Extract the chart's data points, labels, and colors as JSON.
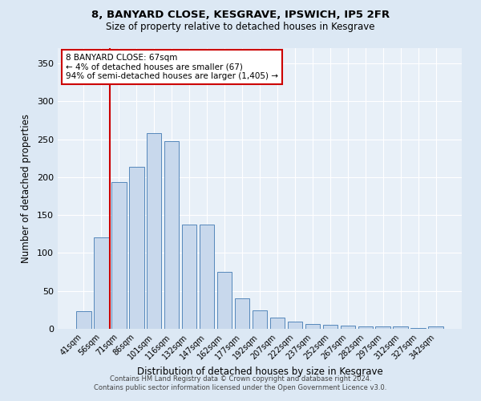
{
  "title1": "8, BANYARD CLOSE, KESGRAVE, IPSWICH, IP5 2FR",
  "title2": "Size of property relative to detached houses in Kesgrave",
  "xlabel": "Distribution of detached houses by size in Kesgrave",
  "ylabel": "Number of detached properties",
  "categories": [
    "41sqm",
    "56sqm",
    "71sqm",
    "86sqm",
    "101sqm",
    "116sqm",
    "132sqm",
    "147sqm",
    "162sqm",
    "177sqm",
    "192sqm",
    "207sqm",
    "222sqm",
    "237sqm",
    "252sqm",
    "267sqm",
    "282sqm",
    "297sqm",
    "312sqm",
    "327sqm",
    "342sqm"
  ],
  "values": [
    23,
    120,
    193,
    214,
    258,
    247,
    137,
    137,
    75,
    40,
    24,
    15,
    9,
    6,
    5,
    4,
    3,
    3,
    3,
    1,
    3
  ],
  "bar_color": "#c8d8ec",
  "bar_edge_color": "#5588bb",
  "vline_color": "#cc0000",
  "vline_x_index": 1.5,
  "annotation_text": "8 BANYARD CLOSE: 67sqm\n← 4% of detached houses are smaller (67)\n94% of semi-detached houses are larger (1,405) →",
  "annotation_box_facecolor": "#ffffff",
  "annotation_box_edgecolor": "#cc0000",
  "ylim": [
    0,
    370
  ],
  "yticks": [
    0,
    50,
    100,
    150,
    200,
    250,
    300,
    350
  ],
  "footer1": "Contains HM Land Registry data © Crown copyright and database right 2024.",
  "footer2": "Contains public sector information licensed under the Open Government Licence v3.0.",
  "fig_bg_color": "#dce8f4",
  "plot_bg_color": "#e8f0f8"
}
